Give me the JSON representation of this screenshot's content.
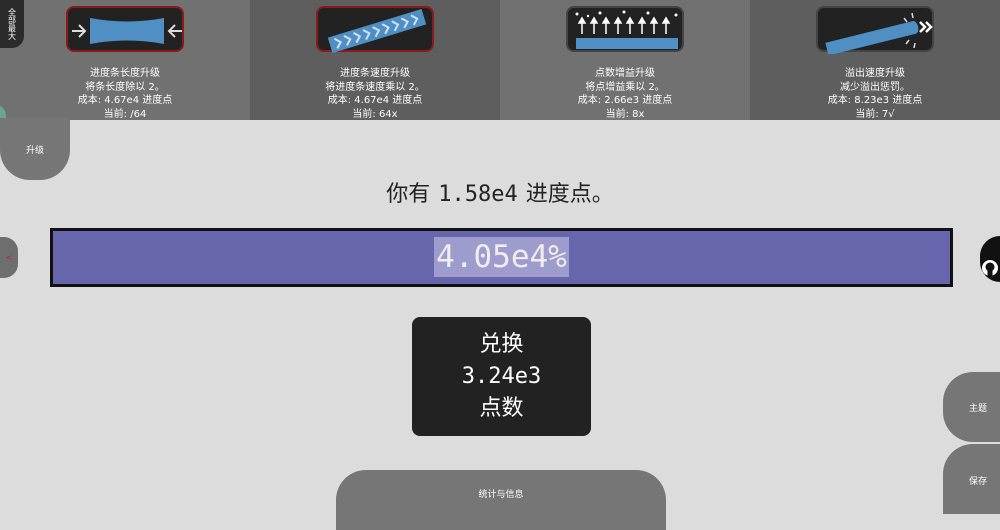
{
  "upgrades": [
    {
      "icon": "bar-shrink-icon",
      "title": "进度条长度升级",
      "desc": "将条长度除以 2。",
      "cost": "成本: 4.67e4 进度点",
      "current": "当前: /64"
    },
    {
      "icon": "bar-speed-icon",
      "title": "进度条速度升级",
      "desc": "将进度条速度乘以 2。",
      "cost": "成本: 4.67e4 进度点",
      "current": "当前: 64x"
    },
    {
      "icon": "points-gain-icon",
      "title": "点数增益升级",
      "desc": "将点增益乘以 2。",
      "cost": "成本: 2.66e3 进度点",
      "current": "当前: 8x"
    },
    {
      "icon": "overflow-speed-icon",
      "title": "溢出速度升级",
      "desc": "减少溢出惩罚。",
      "cost": "成本: 8.23e3 进度点",
      "current": "当前: 7√"
    }
  ],
  "buttons": {
    "fullmax": "全部最大",
    "upgrade": "升级",
    "theme": "主题",
    "save": "保存",
    "stats": "统计与信息",
    "left_tab": "<"
  },
  "points": {
    "prefix": "你有",
    "value": "1.58e4",
    "suffix": "进度点。"
  },
  "progress": {
    "label": "4.05e4%",
    "fill_fraction": 1.0,
    "color": "#6765ab"
  },
  "exchange": {
    "line1": "兑换",
    "amount": "3.24e3",
    "line3": "点数"
  }
}
